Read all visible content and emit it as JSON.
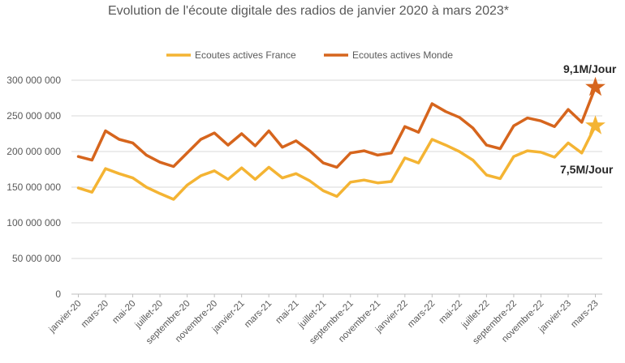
{
  "chart_data": {
    "type": "line",
    "title": "Evolution de l'écoute digitale des radios de janvier 2020 à mars 2023*",
    "xlabel": "",
    "ylabel": "",
    "ylim": [
      0,
      300000000
    ],
    "yticks": [
      0,
      50000000,
      100000000,
      150000000,
      200000000,
      250000000,
      300000000
    ],
    "ytick_labels": [
      "0",
      "50 000 000",
      "100 000 000",
      "150 000 000",
      "200 000 000",
      "250 000 000",
      "300 000 000"
    ],
    "grid": true,
    "legend_position": "top",
    "x": [
      "janv-20",
      "févr-20",
      "mars-20",
      "avr-20",
      "mai-20",
      "juin-20",
      "juillet-20",
      "août-20",
      "septembre-20",
      "oct-20",
      "novembre-20",
      "déc-20",
      "janvier-21",
      "févr-21",
      "mars-21",
      "avr-21",
      "mai-21",
      "juin-21",
      "juillet-21",
      "août-21",
      "septembre-21",
      "oct-21",
      "novembre-21",
      "déc-21",
      "janvier-22",
      "févr-22",
      "mars-22",
      "avr-22",
      "mai-22",
      "juin-22",
      "juillet-22",
      "août-22",
      "septembre-22",
      "oct-22",
      "novembre-22",
      "déc-22",
      "janvier-23",
      "févr-23",
      "mars-23"
    ],
    "x_tick_labels": [
      "janvier-20",
      "mars-20",
      "mai-20",
      "juillet-20",
      "septembre-20",
      "novembre-20",
      "janvier-21",
      "mars-21",
      "mai-21",
      "juillet-21",
      "septembre-21",
      "novembre-21",
      "janvier-22",
      "mars-22",
      "mai-22",
      "juillet-22",
      "septembre-22",
      "novembre-22",
      "janvier-23",
      "mars-23"
    ],
    "series": [
      {
        "name": "Ecoutes actives France",
        "color": "#F4B433",
        "values": [
          149000000,
          143000000,
          176000000,
          169000000,
          163000000,
          150000000,
          141000000,
          133000000,
          153000000,
          166000000,
          173000000,
          161000000,
          177000000,
          161000000,
          178000000,
          163000000,
          169000000,
          159000000,
          145000000,
          137000000,
          157000000,
          160000000,
          156000000,
          158000000,
          191000000,
          184000000,
          217000000,
          209000000,
          200000000,
          188000000,
          167000000,
          162000000,
          193000000,
          201000000,
          199000000,
          192000000,
          212000000,
          198000000,
          236000000
        ]
      },
      {
        "name": "Ecoutes actives Monde",
        "color": "#D6651D",
        "values": [
          193000000,
          188000000,
          229000000,
          217000000,
          212000000,
          195000000,
          185000000,
          179000000,
          198000000,
          217000000,
          226000000,
          209000000,
          225000000,
          208000000,
          229000000,
          206000000,
          215000000,
          201000000,
          184000000,
          178000000,
          198000000,
          201000000,
          195000000,
          198000000,
          235000000,
          227000000,
          267000000,
          256000000,
          248000000,
          233000000,
          209000000,
          204000000,
          236000000,
          247000000,
          243000000,
          235000000,
          259000000,
          241000000,
          290000000
        ]
      }
    ],
    "annotations": [
      {
        "text": "9,1M/Jour",
        "series": 1
      },
      {
        "text": "7,5M/Jour",
        "series": 0
      }
    ]
  }
}
